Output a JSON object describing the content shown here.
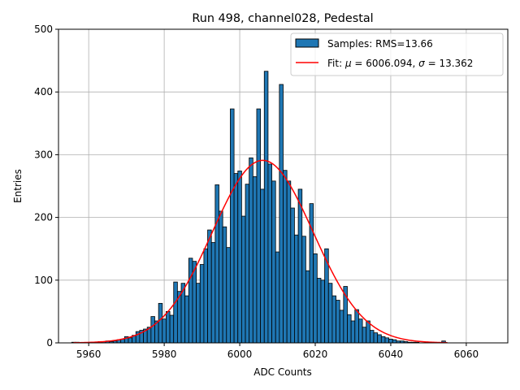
{
  "chart_data": {
    "type": "bar",
    "title": "Run 498, channel028, Pedestal",
    "xlabel": "ADC Counts",
    "ylabel": "Entries",
    "xlim": [
      5952,
      6071
    ],
    "ylim": [
      0,
      500
    ],
    "xticks": [
      5960,
      5980,
      6000,
      6020,
      6040,
      6060
    ],
    "yticks": [
      0,
      100,
      200,
      300,
      400,
      500
    ],
    "grid": true,
    "legend_position": "top-right",
    "legend": {
      "hist_label": "Samples: RMS=13.66",
      "fit_prefix": "Fit: ",
      "mu_symbol": "μ",
      "mu_text": " = 6006.094, ",
      "sigma_symbol": "σ",
      "sigma_text": " = 13.362"
    },
    "histogram": {
      "bin_width": 1,
      "bins": [
        [
          5956,
          1
        ],
        [
          5957,
          1
        ],
        [
          5962,
          1
        ],
        [
          5963,
          2
        ],
        [
          5964,
          2
        ],
        [
          5965,
          3
        ],
        [
          5966,
          2
        ],
        [
          5967,
          3
        ],
        [
          5968,
          5
        ],
        [
          5969,
          6
        ],
        [
          5970,
          10
        ],
        [
          5971,
          8
        ],
        [
          5972,
          12
        ],
        [
          5973,
          18
        ],
        [
          5974,
          20
        ],
        [
          5975,
          22
        ],
        [
          5976,
          25
        ],
        [
          5977,
          42
        ],
        [
          5978,
          35
        ],
        [
          5979,
          63
        ],
        [
          5980,
          38
        ],
        [
          5981,
          50
        ],
        [
          5982,
          44
        ],
        [
          5983,
          97
        ],
        [
          5984,
          82
        ],
        [
          5985,
          95
        ],
        [
          5986,
          75
        ],
        [
          5987,
          135
        ],
        [
          5988,
          130
        ],
        [
          5989,
          95
        ],
        [
          5990,
          125
        ],
        [
          5991,
          150
        ],
        [
          5992,
          180
        ],
        [
          5993,
          160
        ],
        [
          5994,
          252
        ],
        [
          5995,
          210
        ],
        [
          5996,
          185
        ],
        [
          5997,
          152
        ],
        [
          5998,
          373
        ],
        [
          5999,
          270
        ],
        [
          6000,
          274
        ],
        [
          6001,
          202
        ],
        [
          6002,
          253
        ],
        [
          6003,
          295
        ],
        [
          6004,
          265
        ],
        [
          6005,
          373
        ],
        [
          6006,
          245
        ],
        [
          6007,
          433
        ],
        [
          6008,
          285
        ],
        [
          6009,
          258
        ],
        [
          6010,
          145
        ],
        [
          6011,
          412
        ],
        [
          6012,
          275
        ],
        [
          6013,
          258
        ],
        [
          6014,
          215
        ],
        [
          6015,
          172
        ],
        [
          6016,
          245
        ],
        [
          6017,
          170
        ],
        [
          6018,
          115
        ],
        [
          6019,
          222
        ],
        [
          6020,
          142
        ],
        [
          6021,
          103
        ],
        [
          6022,
          100
        ],
        [
          6023,
          150
        ],
        [
          6024,
          95
        ],
        [
          6025,
          75
        ],
        [
          6026,
          68
        ],
        [
          6027,
          52
        ],
        [
          6028,
          90
        ],
        [
          6029,
          45
        ],
        [
          6030,
          35
        ],
        [
          6031,
          53
        ],
        [
          6032,
          38
        ],
        [
          6033,
          25
        ],
        [
          6034,
          35
        ],
        [
          6035,
          20
        ],
        [
          6036,
          16
        ],
        [
          6037,
          13
        ],
        [
          6038,
          10
        ],
        [
          6039,
          8
        ],
        [
          6040,
          6
        ],
        [
          6041,
          5
        ],
        [
          6042,
          3
        ],
        [
          6043,
          3
        ],
        [
          6044,
          2
        ],
        [
          6045,
          1
        ],
        [
          6046,
          1
        ],
        [
          6047,
          1
        ],
        [
          6054,
          3
        ]
      ]
    },
    "fit": {
      "mu": 6006.094,
      "sigma": 13.362,
      "amplitude": 291,
      "x_range": [
        5956,
        6055
      ],
      "color": "#ff0000"
    },
    "bar_color": "#1f77b4",
    "bar_edge_color": "#000000"
  }
}
